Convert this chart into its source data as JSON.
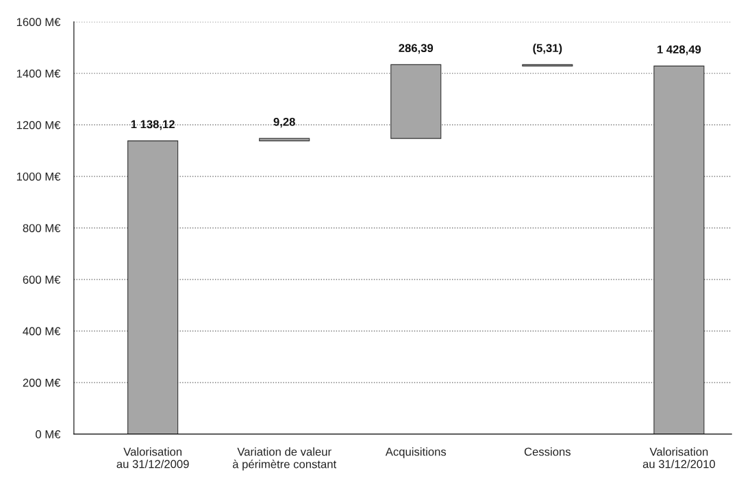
{
  "chart_data": {
    "type": "bar",
    "categories": [
      "Valorisation\nau 31/12/2009",
      "Variation de valeur\nà périmètre constant",
      "Acquisitions",
      "Cessions",
      "Valorisation\nau 31/12/2010"
    ],
    "values": [
      1138.12,
      9.28,
      286.39,
      -5.31,
      1428.49
    ],
    "base": [
      0,
      1138.12,
      1147.4,
      1433.79,
      0
    ],
    "value_labels": [
      "1 138,12",
      "9,28",
      "286,39",
      "(5,31)",
      "1 428,49"
    ],
    "color": "#a6a6a6",
    "ylim": [
      0,
      1600
    ],
    "yticks": [
      {
        "value": 0,
        "label": "0 M€"
      },
      {
        "value": 200,
        "label": "200 M€"
      },
      {
        "value": 400,
        "label": "400 M€"
      },
      {
        "value": 600,
        "label": "600 M€"
      },
      {
        "value": 800,
        "label": "800 M€"
      },
      {
        "value": 1000,
        "label": "1000 M€"
      },
      {
        "value": 1200,
        "label": "1200 M€"
      },
      {
        "value": 1400,
        "label": "1400 M€"
      },
      {
        "value": 1600,
        "label": "1600 M€"
      }
    ],
    "grid": "y"
  }
}
